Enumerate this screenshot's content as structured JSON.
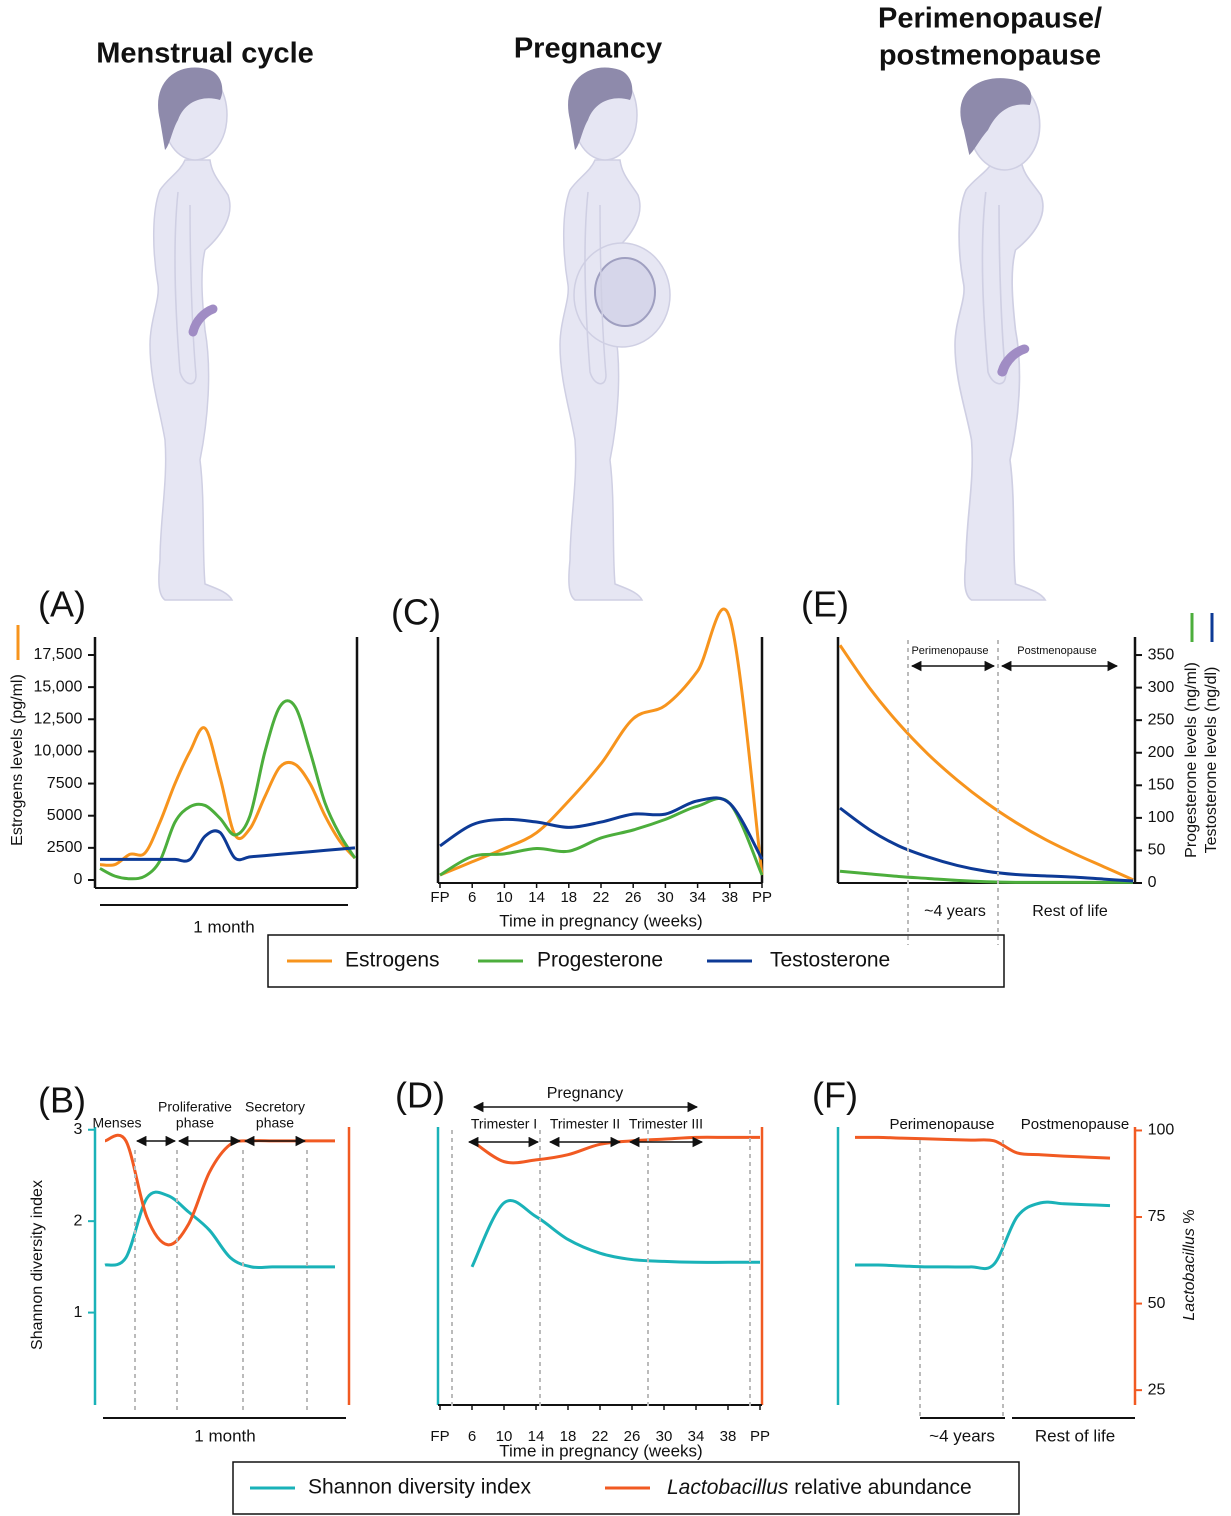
{
  "columns": [
    [
      "Menstrual cycle"
    ],
    [
      "Pregnancy"
    ],
    [
      "Perimenopause/",
      "postmenopause"
    ]
  ],
  "chart_data": [
    {
      "type": "line",
      "panel": "(A)",
      "xlabel": "1 month",
      "ylabel": "Estrogens levels (pg/ml)",
      "ylim": [
        0,
        19000
      ],
      "yticks": [
        0,
        2500,
        5000,
        7500,
        {
          "value": 10000,
          "label": "10,000"
        },
        {
          "value": 12500,
          "label": "12,500"
        },
        {
          "value": 15000,
          "label": "15,000"
        },
        {
          "value": 17500,
          "label": "17,500"
        }
      ],
      "series": [
        {
          "name": "Estrogens",
          "color": "#f7941d",
          "values": [
            1200,
            1200,
            2000,
            2100,
            4500,
            7500,
            10000,
            11800,
            8000,
            3500,
            4000,
            6500,
            8800,
            9000,
            7500,
            5000,
            3000,
            1700
          ]
        },
        {
          "name": "Progesterone",
          "color": "#4cae3c",
          "values": [
            900,
            300,
            100,
            300,
            1500,
            4500,
            5700,
            5800,
            4800,
            3500,
            5000,
            10000,
            13500,
            13500,
            10000,
            6000,
            3500,
            1700
          ]
        },
        {
          "name": "Testosterone",
          "color": "#0d3a96",
          "values": [
            1600,
            1600,
            1600,
            1600,
            1600,
            1600,
            1600,
            3400,
            3700,
            1700,
            1800,
            1900,
            2000,
            2100,
            2200,
            2300,
            2400,
            2500
          ]
        }
      ]
    },
    {
      "type": "line",
      "panel": "(C)",
      "xlabel": "Time in pregnancy (weeks)",
      "categories": [
        "FP",
        "6",
        "10",
        "14",
        "18",
        "22",
        "26",
        "30",
        "34",
        "38",
        "PP"
      ],
      "ylim": [
        0,
        100
      ],
      "series": [
        {
          "name": "Estrogens",
          "color": "#f7941d",
          "values": [
            3,
            8,
            13,
            19,
            31,
            45,
            62,
            67,
            80,
            100,
            3
          ]
        },
        {
          "name": "Progesterone",
          "color": "#4cae3c",
          "values": [
            3,
            10,
            11,
            13,
            12,
            17,
            20,
            24,
            29,
            30,
            3
          ]
        },
        {
          "name": "Testosterone",
          "color": "#0d3a96",
          "values": [
            14,
            22,
            24,
            23,
            21,
            23,
            26,
            26,
            31,
            30,
            9
          ]
        }
      ]
    },
    {
      "type": "line",
      "panel": "(E)",
      "ylabels": [
        "Progesterone levels (ng/ml)",
        "Testosterone levels (ng/dl)"
      ],
      "ylim": [
        0,
        380
      ],
      "yticks": [
        0,
        50,
        100,
        150,
        200,
        250,
        300,
        350
      ],
      "phases": [
        [
          "Perimenopause"
        ],
        [
          "Postmenopause"
        ]
      ],
      "durations": [
        "~4 years",
        "Rest of life"
      ],
      "series": [
        {
          "name": "Estrogens",
          "color": "#f7941d",
          "values": [
            365,
            300,
            245,
            198,
            158,
            123,
            93,
            67,
            45,
            25,
            5
          ]
        },
        {
          "name": "Progesterone",
          "color": "#4cae3c",
          "values": [
            18,
            14,
            10,
            7,
            4,
            2,
            1,
            1,
            1,
            1,
            1
          ]
        },
        {
          "name": "Testosterone",
          "color": "#0d3a96",
          "values": [
            115,
            82,
            57,
            40,
            27,
            18,
            13,
            11,
            9,
            6,
            3
          ]
        }
      ]
    },
    {
      "type": "line",
      "panel": "(B)",
      "xlabel": "1 month",
      "ylabel": "Shannon diversity index",
      "ylim": [
        0,
        3.03
      ],
      "yticks": [
        1,
        2,
        3
      ],
      "y2lim": [
        21,
        101
      ],
      "phases": [
        [
          "Menses"
        ],
        [
          "Proliferative",
          "phase"
        ],
        [
          "Secretory",
          "phase"
        ]
      ],
      "series": [
        {
          "name": "Shannon diversity index",
          "color": "#1ab2b8",
          "values": [
            1.52,
            1.6,
            2.25,
            2.28,
            2.1,
            1.9,
            1.6,
            1.5,
            1.5,
            1.5,
            1.5,
            1.5
          ]
        },
        {
          "name": "Lactobacillus relative abundance",
          "color": "#f15a22",
          "axis": "y2",
          "values": [
            97,
            97,
            75,
            67,
            73,
            88,
            96,
            97,
            97,
            97,
            97,
            97
          ]
        }
      ]
    },
    {
      "type": "line",
      "panel": "(D)",
      "xlabel": "Time in pregnancy (weeks)",
      "categories": [
        "FP",
        "6",
        "10",
        "14",
        "18",
        "22",
        "26",
        "30",
        "34",
        "38",
        "PP"
      ],
      "ylim": [
        0,
        3.03
      ],
      "y2lim": [
        21,
        101
      ],
      "span": "Pregnancy",
      "phases": [
        [
          "Trimester I"
        ],
        [
          "Trimester II"
        ],
        [
          "Trimester III"
        ]
      ],
      "series": [
        {
          "name": "Shannon diversity index",
          "color": "#1ab2b8",
          "values": [
            null,
            1.5,
            2.2,
            2.05,
            1.8,
            1.65,
            1.58,
            1.56,
            1.55,
            1.55,
            1.55
          ]
        },
        {
          "name": "Lactobacillus relative abundance",
          "color": "#f15a22",
          "axis": "y2",
          "values": [
            null,
            97,
            91,
            91.5,
            93,
            96,
            97,
            97.5,
            98,
            98,
            98
          ]
        }
      ]
    },
    {
      "type": "line",
      "panel": "(F)",
      "y2label": "Lactobacillus %",
      "ylim": [
        0,
        3.03
      ],
      "y2lim": [
        21,
        101
      ],
      "y2ticks": [
        25,
        50,
        75,
        100
      ],
      "phases": [
        [
          "Perimenopause"
        ],
        [
          "Postmenopause"
        ]
      ],
      "durations": [
        "~4 years",
        "Rest of life"
      ],
      "series": [
        {
          "name": "Shannon diversity index",
          "color": "#1ab2b8",
          "values": [
            1.52,
            1.52,
            1.51,
            1.5,
            1.5,
            1.5,
            1.53,
            2.05,
            2.2,
            2.19,
            2.18,
            2.17
          ]
        },
        {
          "name": "Lactobacillus relative abundance",
          "color": "#f15a22",
          "axis": "y2",
          "values": [
            98,
            98,
            97.8,
            97.6,
            97.4,
            97.2,
            97,
            93.5,
            93,
            92.6,
            92.3,
            92
          ]
        }
      ]
    }
  ]
}
